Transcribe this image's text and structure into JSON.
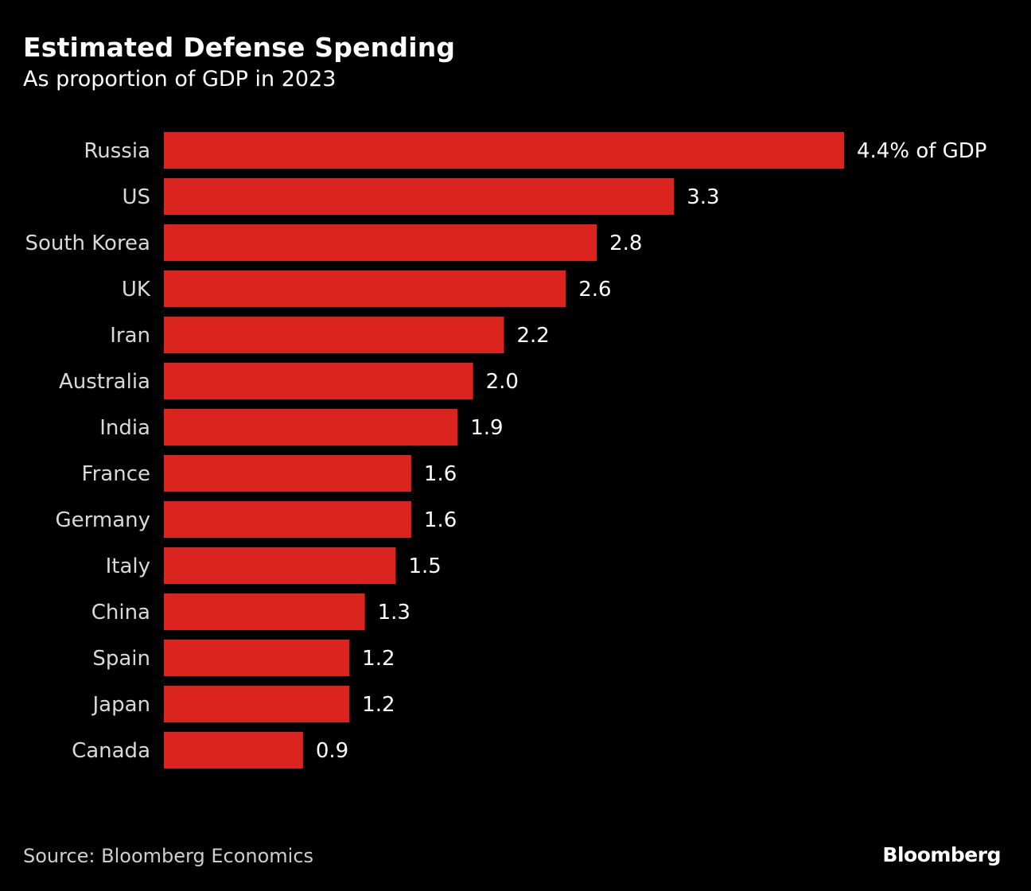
{
  "chart_data": {
    "type": "bar",
    "orientation": "horizontal",
    "title": "Estimated Defense Spending",
    "subtitle": "As proportion of GDP in 2023",
    "xlabel": "",
    "ylabel": "",
    "unit": "% of GDP",
    "categories": [
      "Russia",
      "US",
      "South Korea",
      "UK",
      "Iran",
      "Australia",
      "India",
      "France",
      "Germany",
      "Italy",
      "China",
      "Spain",
      "Japan",
      "Canada"
    ],
    "values": [
      4.4,
      3.3,
      2.8,
      2.6,
      2.2,
      2.0,
      1.9,
      1.6,
      1.6,
      1.5,
      1.3,
      1.2,
      1.2,
      0.9
    ],
    "value_labels": [
      "4.4% of GDP",
      "3.3",
      "2.8",
      "2.6",
      "2.2",
      "2.0",
      "1.9",
      "1.6",
      "1.6",
      "1.5",
      "1.3",
      "1.2",
      "1.2",
      "0.9"
    ],
    "xlim": [
      0,
      4.4
    ],
    "grid": false,
    "legend": "none",
    "bar_color": "#dc241f",
    "source": "Source: Bloomberg Economics"
  },
  "footer": {
    "source": "Source: Bloomberg Economics",
    "brand": "Bloomberg"
  },
  "colors": {
    "background": "#000000",
    "bar": "#dc241f",
    "text": "#ffffff",
    "category_text": "#d9d9d9"
  }
}
